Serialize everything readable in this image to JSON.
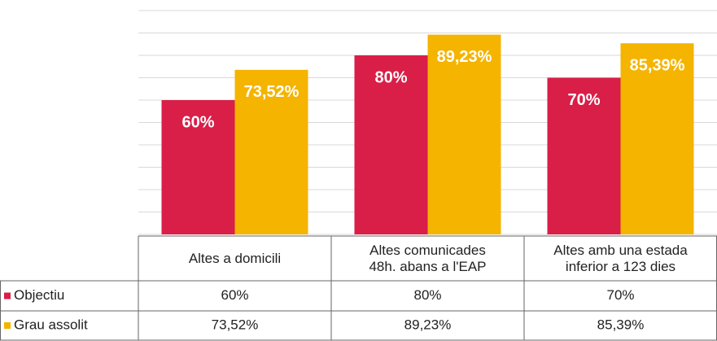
{
  "chart_data": {
    "type": "bar",
    "categories": [
      "Altes a domicili",
      "Altes comunicades\n48h. abans a l'EAP",
      "Altes amb una estada\ninferior a 123 dies"
    ],
    "series": [
      {
        "name": "Objectiu",
        "color": "#d91e48",
        "values": [
          60,
          80,
          70
        ],
        "value_labels": [
          "60%",
          "80%",
          "70%"
        ]
      },
      {
        "name": "Grau assolit",
        "color": "#f4b400",
        "values": [
          73.52,
          89.23,
          85.39
        ],
        "value_labels": [
          "73,52%",
          "89,23%",
          "85,39%"
        ]
      }
    ],
    "ylim": [
      0,
      100
    ],
    "yticks": [
      0,
      10,
      20,
      30,
      40,
      50,
      60,
      70,
      80,
      90,
      100
    ],
    "grid": true
  }
}
